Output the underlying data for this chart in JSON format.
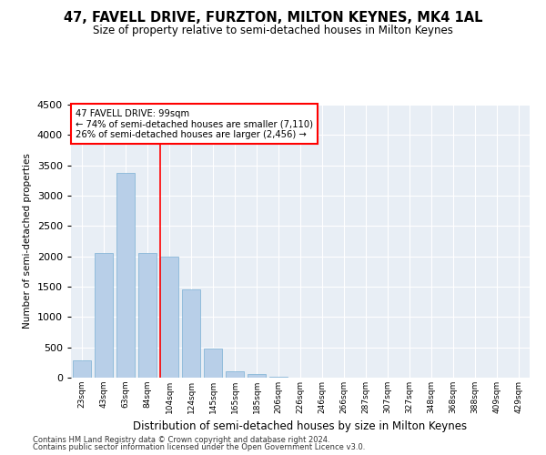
{
  "title": "47, FAVELL DRIVE, FURZTON, MILTON KEYNES, MK4 1AL",
  "subtitle": "Size of property relative to semi-detached houses in Milton Keynes",
  "xlabel": "Distribution of semi-detached houses by size in Milton Keynes",
  "ylabel": "Number of semi-detached properties",
  "categories": [
    "23sqm",
    "43sqm",
    "63sqm",
    "84sqm",
    "104sqm",
    "124sqm",
    "145sqm",
    "165sqm",
    "185sqm",
    "206sqm",
    "226sqm",
    "246sqm",
    "266sqm",
    "287sqm",
    "307sqm",
    "327sqm",
    "348sqm",
    "368sqm",
    "388sqm",
    "409sqm",
    "429sqm"
  ],
  "values": [
    280,
    2050,
    3380,
    2050,
    2000,
    1450,
    480,
    100,
    55,
    20,
    0,
    0,
    0,
    0,
    0,
    0,
    0,
    0,
    0,
    0,
    0
  ],
  "bar_color": "#b8cfe8",
  "bar_edge_color": "#7aafd4",
  "redline_index": 4,
  "ylim": [
    0,
    4500
  ],
  "yticks": [
    0,
    500,
    1000,
    1500,
    2000,
    2500,
    3000,
    3500,
    4000,
    4500
  ],
  "annotation_label": "47 FAVELL DRIVE: 99sqm",
  "pct_smaller": 74,
  "count_smaller": "7,110",
  "pct_larger": 26,
  "count_larger": "2,456",
  "background_color": "#e8eef5",
  "grid_color": "#ffffff",
  "footer_line1": "Contains HM Land Registry data © Crown copyright and database right 2024.",
  "footer_line2": "Contains public sector information licensed under the Open Government Licence v3.0."
}
